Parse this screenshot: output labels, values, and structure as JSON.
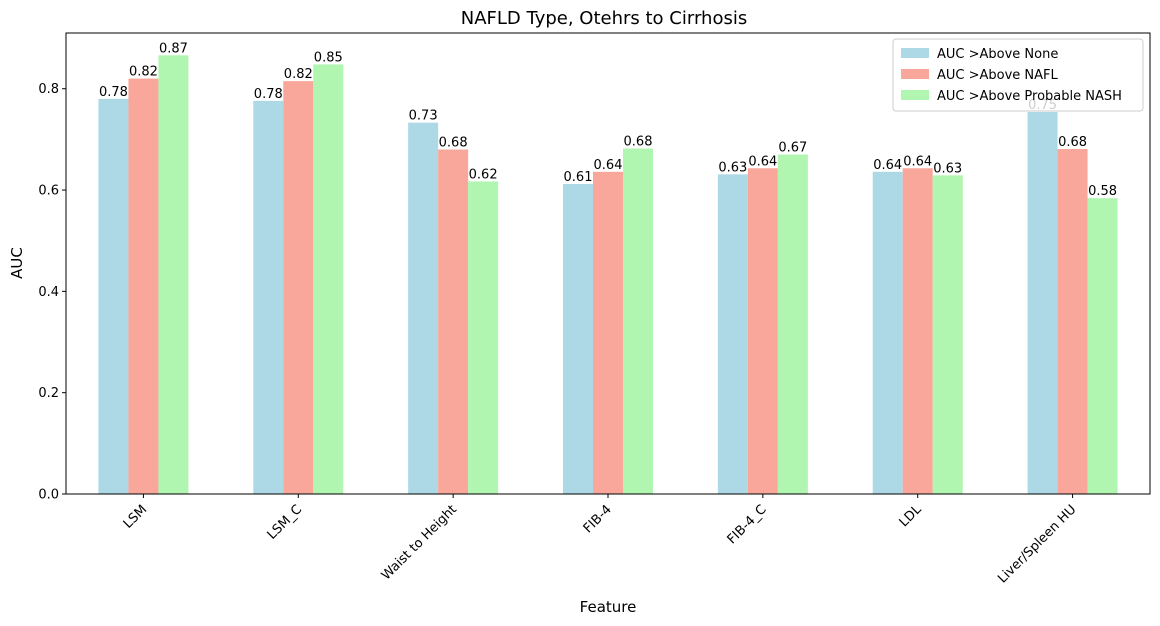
{
  "chart_data": {
    "type": "bar",
    "title": "NAFLD Type, Otehrs to Cirrhosis",
    "xlabel": "Feature",
    "ylabel": "AUC",
    "categories": [
      "LSM",
      "LSM_C",
      "Waist to Height",
      "FIB-4",
      "FIB-4_C",
      "LDL",
      "Liver/Spleen HU"
    ],
    "series": [
      {
        "name": "AUC >Above None",
        "color": "#add8e6",
        "values": [
          0.78,
          0.776,
          0.733,
          0.612,
          0.631,
          0.636,
          0.754
        ],
        "labels": [
          "0.78",
          "0.78",
          "0.73",
          "0.61",
          "0.63",
          "0.64",
          "0.75"
        ]
      },
      {
        "name": "AUC >Above NAFL",
        "color": "#f9a79a",
        "values": [
          0.82,
          0.815,
          0.68,
          0.636,
          0.643,
          0.643,
          0.681
        ],
        "labels": [
          "0.82",
          "0.82",
          "0.68",
          "0.64",
          "0.64",
          "0.64",
          "0.68"
        ]
      },
      {
        "name": "AUC >Above Probable NASH",
        "color": "#b0f5b0",
        "values": [
          0.866,
          0.848,
          0.617,
          0.682,
          0.67,
          0.629,
          0.584
        ],
        "labels": [
          "0.87",
          "0.85",
          "0.62",
          "0.68",
          "0.67",
          "0.63",
          "0.58"
        ]
      }
    ],
    "yticks": [
      "0.0",
      "0.2",
      "0.4",
      "0.6",
      "0.8"
    ],
    "ylim": [
      0,
      0.91
    ],
    "legend_position": "top-right",
    "grid": false
  }
}
